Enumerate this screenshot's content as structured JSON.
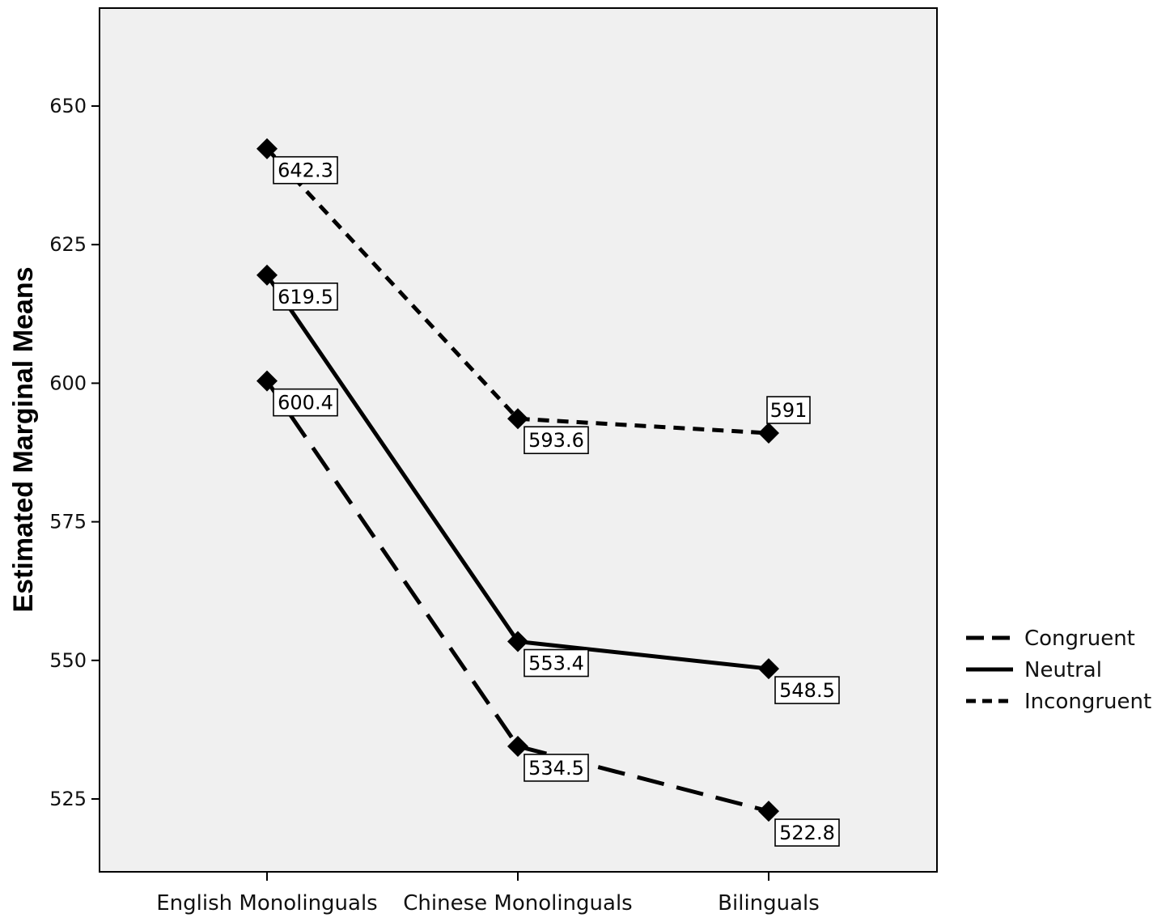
{
  "chart_data": {
    "type": "line",
    "title": "",
    "xlabel": "",
    "ylabel": "Estimated Marginal Means",
    "categories": [
      "English Monolinguals",
      "Chinese Monolinguals",
      "Bilinguals"
    ],
    "ylim": [
      510,
      665
    ],
    "yticks": [
      525,
      550,
      575,
      600,
      625,
      650
    ],
    "grid": false,
    "legend_position": "right",
    "series": [
      {
        "name": "Congruent",
        "style": "dashed",
        "values": [
          600.4,
          534.5,
          522.8
        ],
        "labels": [
          "600.4",
          "534.5",
          "522.8"
        ]
      },
      {
        "name": "Neutral",
        "style": "solid",
        "values": [
          619.5,
          553.4,
          548.5
        ],
        "labels": [
          "619.5",
          "553.4",
          "548.5"
        ]
      },
      {
        "name": "Incongruent",
        "style": "dotted",
        "values": [
          642.3,
          593.6,
          591
        ],
        "labels": [
          "642.3",
          "593.6",
          "591"
        ]
      }
    ],
    "colors": {
      "plot_background": "#f0f0f0",
      "line": "#000000",
      "label_box": "#ffffff"
    }
  }
}
